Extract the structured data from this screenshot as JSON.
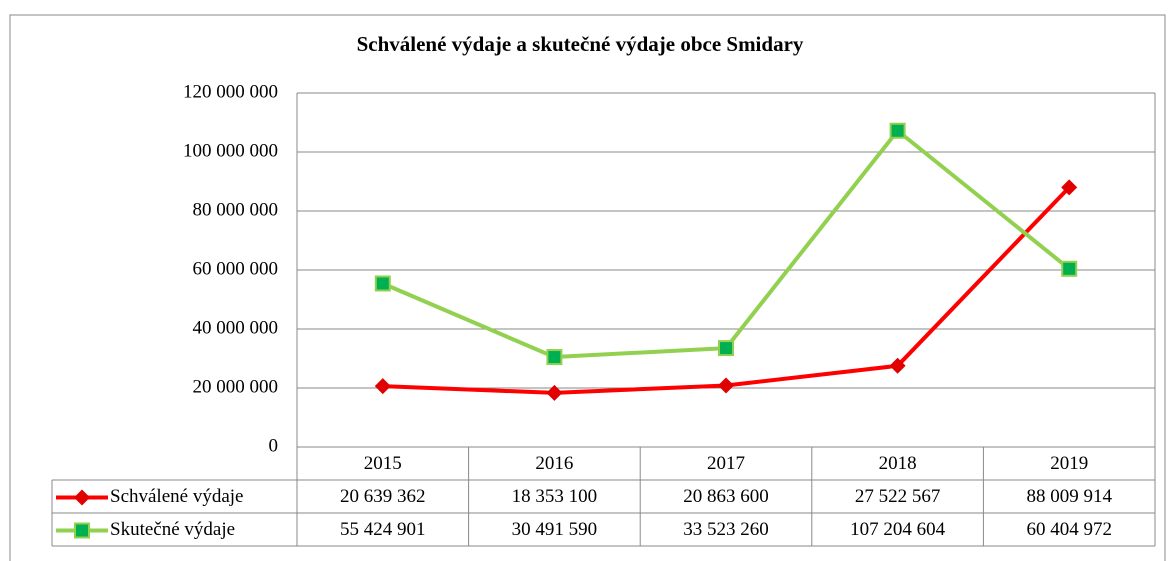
{
  "chart_data": {
    "type": "line",
    "title": "Schválené výdaje a skutečné výdaje obce Smidary",
    "categories": [
      "2015",
      "2016",
      "2017",
      "2018",
      "2019"
    ],
    "series": [
      {
        "name": "Schválené výdaje",
        "color": "#ff0000",
        "marker": "diamond",
        "marker_color": "#e00000",
        "values": [
          20639362,
          18353100,
          20863600,
          27522567,
          88009914
        ],
        "value_labels": [
          "20 639 362",
          "18 353 100",
          "20 863 600",
          "27 522 567",
          "88 009 914"
        ]
      },
      {
        "name": "Skutečné výdaje",
        "color": "#92d050",
        "marker": "square",
        "marker_color": "#00b050",
        "values": [
          55424901,
          30491590,
          33523260,
          107204604,
          60404972
        ],
        "value_labels": [
          "55 424 901",
          "30 491 590",
          "33 523 260",
          "107 204 604",
          "60 404 972"
        ]
      }
    ],
    "ylim": [
      0,
      120000000
    ],
    "yticks": [
      0,
      {
        "value": 20000000,
        "label": "20 000 000"
      },
      {
        "value": 40000000,
        "label": "40 000 000"
      },
      {
        "value": 60000000,
        "label": "60 000 000"
      },
      {
        "value": 80000000,
        "label": "80 000 000"
      },
      {
        "value": 100000000,
        "label": "100 000 000"
      },
      {
        "value": 120000000,
        "label": "120 000 000"
      }
    ],
    "grid": true,
    "data_table": true
  }
}
